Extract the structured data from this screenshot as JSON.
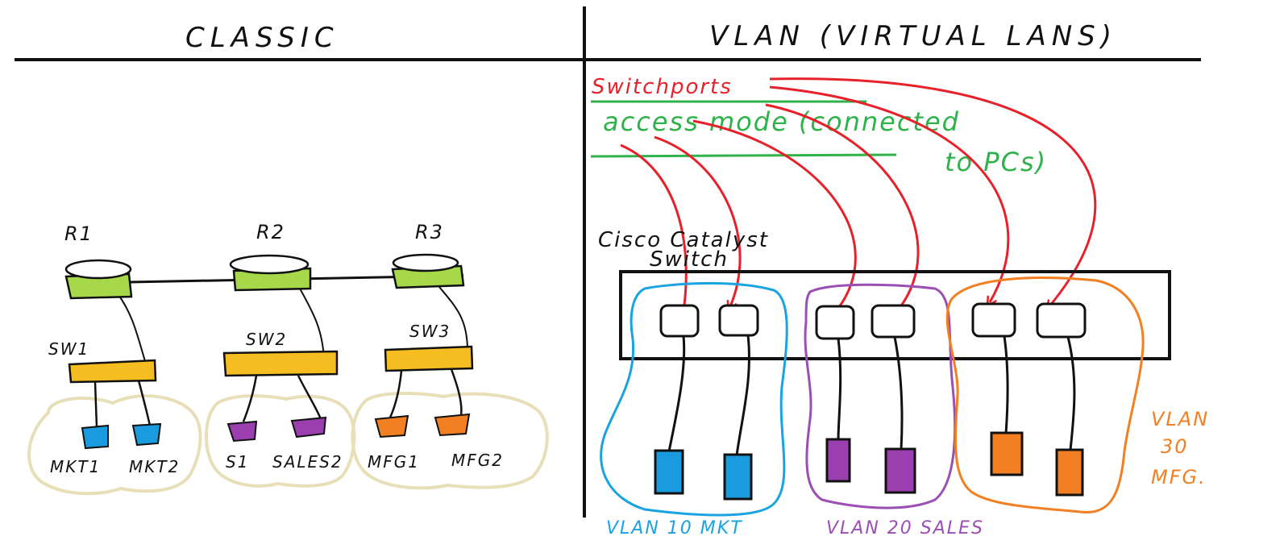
{
  "headers": {
    "classic": "CLASSIC",
    "vlan": "VLAN (VIRTUAL LANS)"
  },
  "classic": {
    "routers": [
      "R1",
      "R2",
      "R3"
    ],
    "switches": [
      "SW1",
      "SW2",
      "SW3"
    ],
    "hosts": [
      "MKT1",
      "MKT2",
      "S1",
      "SALES2",
      "MFG1",
      "MFG2"
    ]
  },
  "vlan": {
    "switchports_label": "Switchports",
    "access_mode_line1": "access mode (connected",
    "access_mode_line2": "to PCs)",
    "switch_label_line1": "Cisco Catalyst",
    "switch_label_line2": "Switch",
    "groups": [
      {
        "label": "VLAN 10 MKT"
      },
      {
        "label": "VLAN 20 SALES"
      },
      {
        "label_line1": "VLAN",
        "label_line2": "30",
        "label_line3": "MFG."
      }
    ]
  },
  "colors": {
    "router": "#a6d84a",
    "switch": "#f5bd1f",
    "mkt": "#1a9be0",
    "sales": "#9b3fb0",
    "mfg": "#f28023",
    "cloud": "#e8dfb8",
    "red": "#e8202a",
    "green": "#2fb24a",
    "blue_outline": "#1aa3e0",
    "purple_outline": "#9b4fb5",
    "orange_outline": "#f28023"
  }
}
